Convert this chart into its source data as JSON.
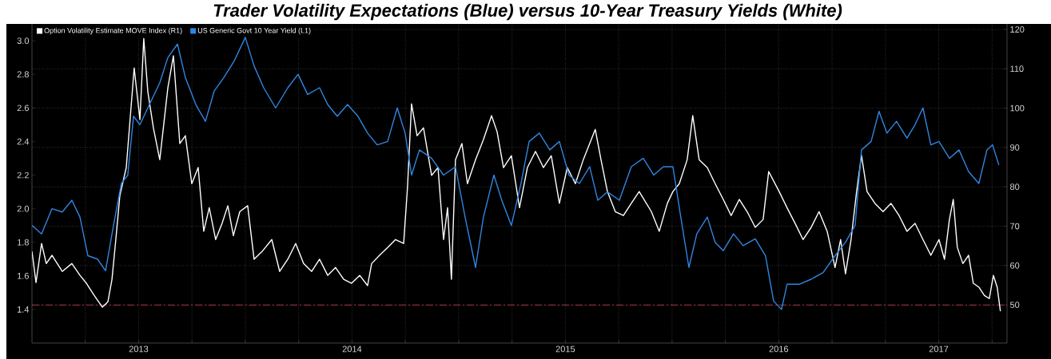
{
  "chart_data": {
    "type": "line",
    "title": "Trader Volatility Expectations (Blue) versus 10-Year Treasury Yields (White)",
    "xlim": [
      2013,
      2017.57
    ],
    "xticks": [
      {
        "value": 2013.25,
        "label": null
      },
      {
        "value": 2013.5,
        "label": "2013"
      },
      {
        "value": 2013.75,
        "label": null
      },
      {
        "value": 2014,
        "label": null
      },
      {
        "value": 2014.25,
        "label": null
      },
      {
        "value": 2014.5,
        "label": "2014"
      },
      {
        "value": 2014.75,
        "label": null
      },
      {
        "value": 2015,
        "label": null
      },
      {
        "value": 2015.25,
        "label": null
      },
      {
        "value": 2015.5,
        "label": "2015"
      },
      {
        "value": 2015.75,
        "label": null
      },
      {
        "value": 2016,
        "label": null
      },
      {
        "value": 2016.25,
        "label": null
      },
      {
        "value": 2016.5,
        "label": "2016"
      },
      {
        "value": 2016.75,
        "label": null
      },
      {
        "value": 2017,
        "label": null
      },
      {
        "value": 2017.25,
        "label": "2017"
      },
      {
        "value": 2017.5,
        "label": null
      }
    ],
    "ylim": [
      1.2,
      3.1
    ],
    "yticks": [
      1.4,
      1.6,
      1.8,
      {
        "value": 2,
        "label": "2.0"
      },
      2.2,
      2.4,
      2.6,
      2.8,
      {
        "value": 3,
        "label": "3.0"
      }
    ],
    "y2lim": [
      40.3,
      121.4
    ],
    "y2ticks": [
      50,
      60,
      70,
      80,
      90,
      100,
      110,
      120
    ],
    "grid": true,
    "legend": "top left",
    "marker": "none",
    "line_style": "solid",
    "ref_lines": [
      {
        "axis": "y2",
        "value": 50,
        "color": "#c0394b",
        "line_style": "dashed"
      }
    ],
    "series": [
      {
        "name": "Option Volatility Estimate MOVE Index (R1)",
        "color": "#ffffff",
        "axis": "y2",
        "x": [
          2013.0,
          2013.019,
          2013.045,
          2013.067,
          2013.094,
          2013.142,
          2013.187,
          2013.225,
          2013.255,
          2013.292,
          2013.33,
          2013.356,
          2013.375,
          2013.393,
          2013.412,
          2013.442,
          2013.479,
          2013.506,
          2013.524,
          2013.543,
          2013.569,
          2013.599,
          2013.637,
          2013.663,
          2013.693,
          2013.719,
          2013.749,
          2013.779,
          2013.805,
          2013.831,
          2013.861,
          2013.891,
          2013.918,
          2013.944,
          2013.974,
          2014.011,
          2014.041,
          2014.079,
          2014.124,
          2014.161,
          2014.199,
          2014.236,
          2014.273,
          2014.311,
          2014.348,
          2014.386,
          2014.423,
          2014.461,
          2014.498,
          2014.536,
          2014.573,
          2014.592,
          2014.629,
          2014.667,
          2014.704,
          2014.742,
          2014.76,
          2014.779,
          2014.805,
          2014.835,
          2014.873,
          2014.903,
          2014.929,
          2014.948,
          2014.966,
          2014.985,
          2015.015,
          2015.041,
          2015.079,
          2015.116,
          2015.154,
          2015.18,
          2015.21,
          2015.247,
          2015.285,
          2015.322,
          2015.36,
          2015.397,
          2015.434,
          2015.472,
          2015.509,
          2015.547,
          2015.584,
          2015.64,
          2015.667,
          2015.697,
          2015.734,
          2015.772,
          2015.809,
          2015.846,
          2015.903,
          2015.94,
          2015.978,
          2016.004,
          2016.034,
          2016.071,
          2016.097,
          2016.127,
          2016.165,
          2016.202,
          2016.24,
          2016.277,
          2016.315,
          2016.352,
          2016.39,
          2016.427,
          2016.453,
          2016.502,
          2016.539,
          2016.577,
          2016.614,
          2016.652,
          2016.689,
          2016.727,
          2016.764,
          2016.79,
          2016.813,
          2016.839,
          2016.865,
          2016.888,
          2016.914,
          2016.951,
          2016.989,
          2017.026,
          2017.064,
          2017.101,
          2017.139,
          2017.176,
          2017.213,
          2017.251,
          2017.277,
          2017.3,
          2017.318,
          2017.337,
          2017.363,
          2017.39,
          2017.412,
          2017.438,
          2017.464,
          2017.487,
          2017.506,
          2017.524,
          2017.539
        ],
        "values": [
          63.6,
          55.7,
          65.6,
          60.5,
          62.6,
          58.5,
          60.5,
          57.5,
          55.5,
          52.4,
          49.4,
          50.8,
          56.5,
          66.6,
          77.8,
          84.9,
          110.2,
          97.1,
          117.7,
          104.2,
          95.0,
          86.9,
          105.2,
          113.3,
          91.0,
          93.0,
          80.8,
          84.9,
          68.7,
          74.7,
          66.6,
          70.7,
          75.2,
          67.6,
          73.7,
          75.2,
          61.6,
          63.6,
          66.6,
          58.5,
          61.6,
          65.6,
          60.5,
          58.5,
          61.6,
          57.5,
          59.5,
          56.5,
          55.5,
          57.5,
          54.9,
          60.5,
          62.6,
          64.6,
          66.6,
          65.6,
          79.8,
          101.1,
          93.0,
          95.0,
          82.9,
          84.9,
          66.6,
          74.7,
          56.5,
          86.9,
          91.0,
          80.8,
          86.9,
          92.0,
          98.1,
          94.0,
          84.9,
          87.9,
          74.7,
          84.9,
          89.0,
          84.9,
          87.9,
          75.8,
          84.9,
          80.8,
          86.9,
          94.6,
          86.9,
          78.8,
          73.7,
          72.7,
          75.8,
          78.8,
          73.7,
          68.7,
          75.8,
          78.8,
          80.8,
          86.9,
          98.1,
          86.9,
          84.9,
          80.8,
          76.8,
          72.7,
          76.8,
          73.7,
          69.7,
          71.7,
          83.9,
          78.8,
          74.7,
          70.7,
          66.6,
          69.7,
          73.7,
          68.7,
          59.5,
          66.6,
          57.9,
          66.6,
          78.8,
          88.0,
          78.8,
          75.8,
          73.7,
          75.8,
          72.7,
          68.7,
          70.7,
          66.6,
          62.6,
          66.6,
          61.6,
          71.7,
          76.8,
          64.6,
          60.5,
          62.6,
          55.5,
          54.5,
          52.4,
          51.6,
          57.5,
          54.5,
          48.4
        ]
      },
      {
        "name": "US Generic Govt 10 Year Yield (L1)",
        "color": "#2f86e0",
        "x": [
          2013.0,
          2013.045,
          2013.094,
          2013.142,
          2013.187,
          2013.225,
          2013.262,
          2013.307,
          2013.345,
          2013.382,
          2013.419,
          2013.449,
          2013.476,
          2013.506,
          2013.543,
          2013.599,
          2013.637,
          2013.682,
          2013.719,
          2013.768,
          2013.813,
          2013.854,
          2013.899,
          2013.948,
          2014.0,
          2014.041,
          2014.086,
          2014.142,
          2014.199,
          2014.247,
          2014.292,
          2014.348,
          2014.386,
          2014.431,
          2014.479,
          2014.528,
          2014.573,
          2014.618,
          2014.667,
          2014.712,
          2014.749,
          2014.779,
          2014.816,
          2014.873,
          2014.929,
          2014.985,
          2015.03,
          2015.079,
          2015.116,
          2015.165,
          2015.202,
          2015.247,
          2015.292,
          2015.33,
          2015.378,
          2015.427,
          2015.472,
          2015.517,
          2015.566,
          2015.614,
          2015.652,
          2015.697,
          2015.753,
          2015.809,
          2015.865,
          2015.914,
          2015.959,
          2016.004,
          2016.041,
          2016.079,
          2016.116,
          2016.165,
          2016.202,
          2016.24,
          2016.288,
          2016.333,
          2016.39,
          2016.438,
          2016.476,
          2016.513,
          2016.539,
          2016.596,
          2016.652,
          2016.708,
          2016.764,
          2016.813,
          2016.858,
          2016.888,
          2016.933,
          2016.97,
          2017.007,
          2017.052,
          2017.101,
          2017.139,
          2017.176,
          2017.213,
          2017.251,
          2017.3,
          2017.345,
          2017.39,
          2017.438,
          2017.476,
          2017.502,
          2017.532
        ],
        "values": [
          1.9,
          1.85,
          2.0,
          1.98,
          2.05,
          1.95,
          1.72,
          1.7,
          1.63,
          1.9,
          2.15,
          2.2,
          2.55,
          2.5,
          2.6,
          2.75,
          2.9,
          2.98,
          2.78,
          2.62,
          2.52,
          2.7,
          2.78,
          2.88,
          3.02,
          2.85,
          2.72,
          2.6,
          2.72,
          2.8,
          2.68,
          2.72,
          2.62,
          2.55,
          2.62,
          2.55,
          2.45,
          2.38,
          2.4,
          2.6,
          2.45,
          2.2,
          2.35,
          2.3,
          2.2,
          2.25,
          1.95,
          1.65,
          1.95,
          2.2,
          2.05,
          1.9,
          2.15,
          2.4,
          2.45,
          2.35,
          2.4,
          2.2,
          2.15,
          2.25,
          2.05,
          2.1,
          2.05,
          2.25,
          2.3,
          2.2,
          2.25,
          2.25,
          1.95,
          1.65,
          1.85,
          1.95,
          1.8,
          1.75,
          1.85,
          1.78,
          1.82,
          1.72,
          1.45,
          1.4,
          1.55,
          1.55,
          1.58,
          1.62,
          1.72,
          1.8,
          1.9,
          2.35,
          2.4,
          2.58,
          2.45,
          2.52,
          2.42,
          2.5,
          2.6,
          2.38,
          2.4,
          2.3,
          2.35,
          2.22,
          2.15,
          2.35,
          2.38,
          2.26
        ]
      }
    ]
  }
}
